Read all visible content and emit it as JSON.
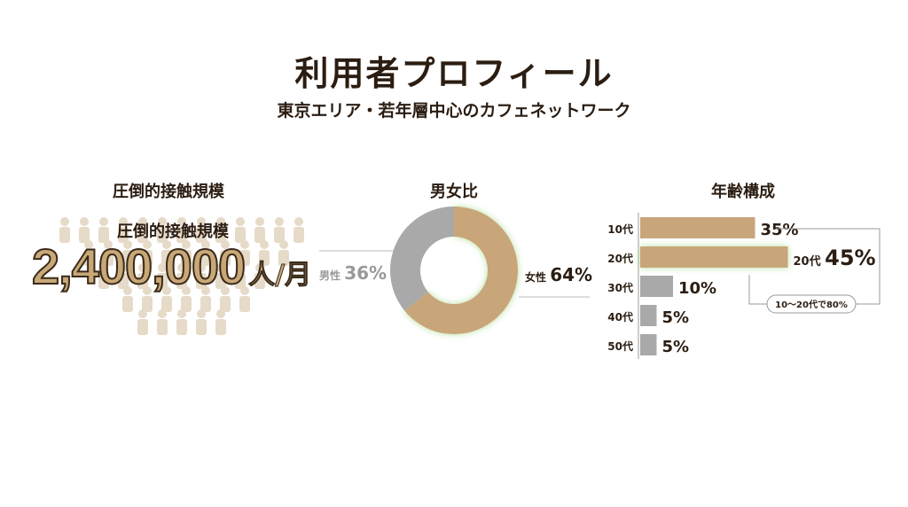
{
  "header": {
    "title": "利用者プロフィール",
    "subtitle": "東京エリア・若年層中心のカフェネットワーク"
  },
  "reach": {
    "section_title": "圧倒的接触規模",
    "label": "圧倒的接触規模",
    "value": "2,400,000",
    "unit": "人/月",
    "icon": "crowd-people-icon"
  },
  "colors": {
    "tan": "#c8a67a",
    "gray": "#a9a9a9",
    "text": "#2b1d12",
    "glow": "#b8e0a0"
  },
  "chart_data": [
    {
      "type": "pie",
      "title": "男女比",
      "donut": true,
      "slices": [
        {
          "name": "女性",
          "value": 64,
          "label": "64%"
        },
        {
          "name": "男性",
          "value": 36,
          "label": "36%"
        }
      ]
    },
    {
      "type": "bar",
      "orientation": "horizontal",
      "title": "年齢構成",
      "categories": [
        "10代",
        "20代",
        "30代",
        "40代",
        "50代"
      ],
      "values": [
        35,
        45,
        10,
        5,
        5
      ],
      "labels": [
        "35%",
        "45%",
        "10%",
        "5%",
        "5%"
      ],
      "highlight": {
        "category": "20代",
        "label": "20代",
        "value": "45%"
      },
      "annotation": "10〜20代で80%"
    }
  ]
}
